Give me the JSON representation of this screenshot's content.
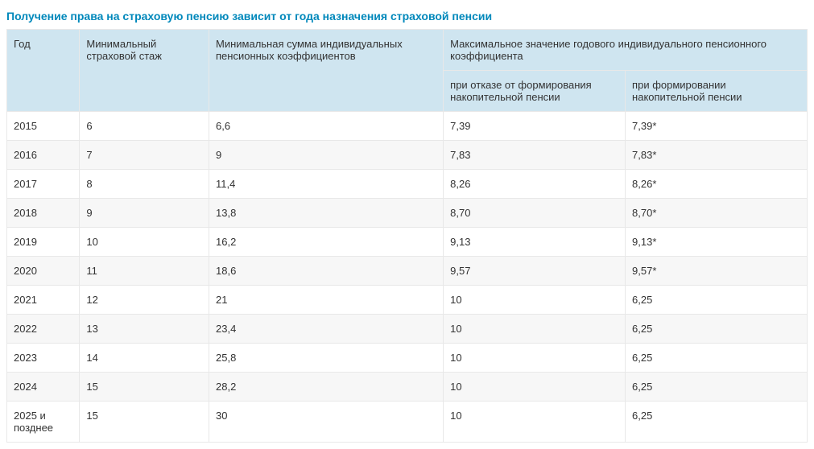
{
  "title": "Получение права на страховую пенсию зависит от года назначения страховой пенсии",
  "colors": {
    "title": "#0088bb",
    "header_bg": "#cfe5f0",
    "row_alt_bg": "#f7f7f7",
    "row_bg": "#ffffff",
    "border": "#e8e8e8",
    "text": "#333333"
  },
  "columns": {
    "year": "Год",
    "stazh": "Минимальный страховой стаж",
    "minsum": "Минимальная сумма индивидуальных пенсионных коэффициентов",
    "max_group": "Максимальное значение годового индивидуального пенсионного коэффициента",
    "otkaz": "при отказе от формирования накопительной пенсии",
    "form": "при формировании накопительной пенсии"
  },
  "rows": [
    {
      "year": "2015",
      "stazh": "6",
      "minsum": "6,6",
      "otkaz": "7,39",
      "form": "7,39*"
    },
    {
      "year": "2016",
      "stazh": "7",
      "minsum": "9",
      "otkaz": "7,83",
      "form": "7,83*"
    },
    {
      "year": "2017",
      "stazh": "8",
      "minsum": "11,4",
      "otkaz": "8,26",
      "form": "8,26*"
    },
    {
      "year": "2018",
      "stazh": "9",
      "minsum": "13,8",
      "otkaz": "8,70",
      "form": "8,70*"
    },
    {
      "year": "2019",
      "stazh": "10",
      "minsum": "16,2",
      "otkaz": "9,13",
      "form": "9,13*"
    },
    {
      "year": "2020",
      "stazh": "11",
      "minsum": "18,6",
      "otkaz": "9,57",
      "form": "9,57*"
    },
    {
      "year": "2021",
      "stazh": "12",
      "minsum": "21",
      "otkaz": "10",
      "form": "6,25"
    },
    {
      "year": "2022",
      "stazh": "13",
      "minsum": "23,4",
      "otkaz": "10",
      "form": "6,25"
    },
    {
      "year": "2023",
      "stazh": "14",
      "minsum": "25,8",
      "otkaz": "10",
      "form": "6,25"
    },
    {
      "year": "2024",
      "stazh": "15",
      "minsum": "28,2",
      "otkaz": "10",
      "form": "6,25"
    },
    {
      "year": "2025 и позднее",
      "stazh": "15",
      "minsum": "30",
      "otkaz": "10",
      "form": "6,25"
    }
  ]
}
